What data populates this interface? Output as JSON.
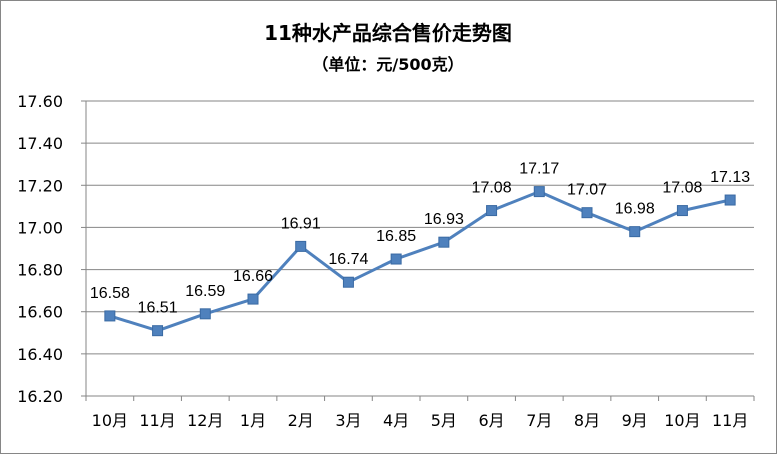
{
  "chart_data": {
    "type": "line",
    "title": "11种水产品综合售价走势图",
    "subtitle": "（单位：元/500克）",
    "categories": [
      "10月",
      "11月",
      "12月",
      "1月",
      "2月",
      "3月",
      "4月",
      "5月",
      "6月",
      "7月",
      "8月",
      "9月",
      "10月",
      "11月"
    ],
    "values": [
      16.58,
      16.51,
      16.59,
      16.66,
      16.91,
      16.74,
      16.85,
      16.93,
      17.08,
      17.17,
      17.07,
      16.98,
      17.08,
      17.13
    ],
    "data_labels": [
      "16.58",
      "16.51",
      "16.59",
      "16.66",
      "16.91",
      "16.74",
      "16.85",
      "16.93",
      "17.08",
      "17.17",
      "17.07",
      "16.98",
      "17.08",
      "17.13"
    ],
    "ylim": [
      16.2,
      17.6
    ],
    "yticks": [
      "16.20",
      "16.40",
      "16.60",
      "16.80",
      "17.00",
      "17.20",
      "17.40",
      "17.60"
    ],
    "ytick_values": [
      16.2,
      16.4,
      16.6,
      16.8,
      17.0,
      17.2,
      17.4,
      17.6
    ],
    "grid": true,
    "legend": "none",
    "series_color": "#4f81bd",
    "marker": "square"
  }
}
